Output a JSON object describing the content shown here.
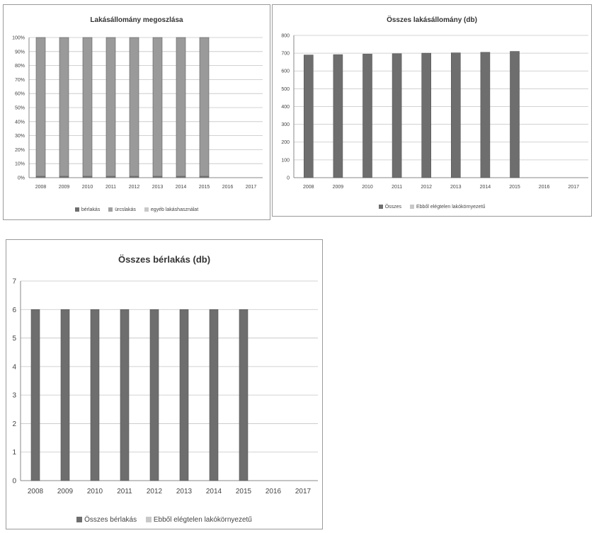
{
  "chart_data": [
    {
      "type": "bar",
      "stacked": true,
      "title": "Lakásállomány megoszlása",
      "categories": [
        "2008",
        "2009",
        "2010",
        "2011",
        "2012",
        "2013",
        "2014",
        "2015",
        "2016",
        "2017"
      ],
      "y_ticks": [
        "0%",
        "10%",
        "20%",
        "30%",
        "40%",
        "50%",
        "60%",
        "70%",
        "80%",
        "90%",
        "100%"
      ],
      "ylim": [
        0,
        100
      ],
      "series": [
        {
          "name": "bérlakás",
          "values": [
            1,
            1,
            1,
            1,
            1,
            1,
            1,
            1,
            null,
            null
          ],
          "color": "#7a7a7a"
        },
        {
          "name": "ürcslakás",
          "values": [
            0,
            0,
            0,
            0,
            0,
            0,
            0,
            0,
            null,
            null
          ],
          "color": "#a0a0a0"
        },
        {
          "name": "egyéb lakáshasználat",
          "values": [
            99,
            99,
            99,
            99,
            99,
            99,
            99,
            99,
            null,
            null
          ],
          "color": "#9a9a9a"
        }
      ],
      "legend_position": "bottom",
      "grid": true
    },
    {
      "type": "bar",
      "title": "Összes lakásállomány (db)",
      "categories": [
        "2008",
        "2009",
        "2010",
        "2011",
        "2012",
        "2013",
        "2014",
        "2015",
        "2016",
        "2017"
      ],
      "y_ticks": [
        "0",
        "100",
        "200",
        "300",
        "400",
        "500",
        "600",
        "700",
        "800"
      ],
      "ylim": [
        0,
        800
      ],
      "series": [
        {
          "name": "Összes",
          "values": [
            690,
            692,
            695,
            697,
            700,
            702,
            705,
            710,
            null,
            null
          ],
          "color": "#6e6e6e"
        },
        {
          "name": "Ebből elégtelen lakókörnyezetű",
          "values": [
            0,
            0,
            0,
            0,
            0,
            0,
            0,
            0,
            null,
            null
          ],
          "color": "#c8c8c8"
        }
      ],
      "legend_position": "bottom",
      "grid": true
    },
    {
      "type": "bar",
      "title": "Összes bérlakás (db)",
      "categories": [
        "2008",
        "2009",
        "2010",
        "2011",
        "2012",
        "2013",
        "2014",
        "2015",
        "2016",
        "2017"
      ],
      "y_ticks": [
        "0",
        "1",
        "2",
        "3",
        "4",
        "5",
        "6",
        "7"
      ],
      "ylim": [
        0,
        7
      ],
      "series": [
        {
          "name": "Összes bérlakás",
          "values": [
            6,
            6,
            6,
            6,
            6,
            6,
            6,
            6,
            null,
            null
          ],
          "color": "#6e6e6e"
        },
        {
          "name": "Ebből elégtelen lakókörnyezetű",
          "values": [
            0,
            0,
            0,
            0,
            0,
            0,
            0,
            0,
            null,
            null
          ],
          "color": "#c8c8c8"
        }
      ],
      "legend_position": "bottom",
      "grid": true
    }
  ]
}
